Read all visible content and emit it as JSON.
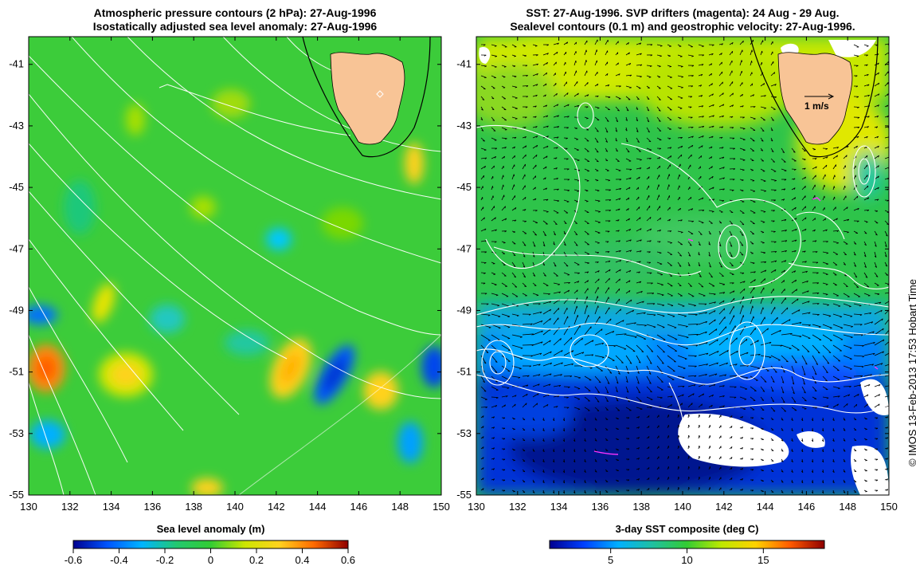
{
  "panels": {
    "left": {
      "title_line1": "Atmospheric pressure contours (2 hPa): 27-Aug-1996",
      "title_line2": "Isostatically adjusted sea level anomaly: 27-Aug-1996",
      "colorbar": {
        "label": "Sea level anomaly (m)",
        "min": -0.6,
        "max": 0.6,
        "ticks": [
          "-0.6",
          "-0.4",
          "-0.2",
          "0",
          "0.2",
          "0.4",
          "0.6"
        ]
      }
    },
    "right": {
      "title_line1": "SST: 27-Aug-1996. SVP drifters (magenta): 24 Aug - 29 Aug.",
      "title_line2": "Sealevel contours (0.1 m) and geostrophic velocity: 27-Aug-1996.",
      "velocity_scale_label": "1 m/s",
      "colorbar": {
        "label": "3-day SST composite (deg C)",
        "min": 1,
        "max": 19,
        "ticks": [
          "5",
          "10",
          "15"
        ]
      }
    }
  },
  "axes": {
    "lon_ticks": [
      "130",
      "132",
      "134",
      "136",
      "138",
      "140",
      "142",
      "144",
      "146",
      "148",
      "150"
    ],
    "lat_ticks": [
      "-41",
      "-43",
      "-45",
      "-47",
      "-49",
      "-51",
      "-53",
      "-55"
    ],
    "lon_range": [
      130,
      150
    ],
    "lat_range": [
      -55,
      -40.1
    ]
  },
  "credit": "© IMOS 13-Feb-2013 17:53 Hobart Time",
  "colors": {
    "land": "#f8c496",
    "sla_cmap": [
      "#00008f",
      "#0055ff",
      "#00b5ff",
      "#22c870",
      "#33cc33",
      "#cde600",
      "#ffd21e",
      "#ff6a00",
      "#8f0000"
    ],
    "sst_cmap": [
      "#00008f",
      "#0040ff",
      "#00b0ff",
      "#20c0a0",
      "#33cc33",
      "#bde800",
      "#ffd200",
      "#ff5a00",
      "#8f0000"
    ],
    "drifters": "#ff33ff"
  }
}
